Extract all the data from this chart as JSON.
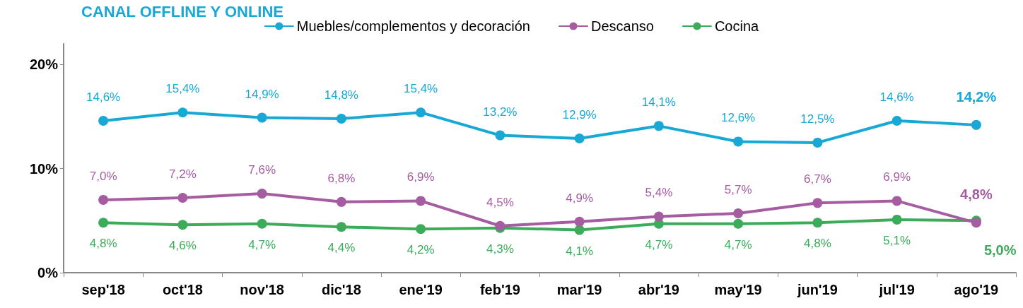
{
  "chart_data": {
    "type": "line",
    "title": "CANAL OFFLINE Y ONLINE",
    "categories": [
      "sep'18",
      "oct'18",
      "nov'18",
      "dic'18",
      "ene'19",
      "feb'19",
      "mar'19",
      "abr'19",
      "may'19",
      "jun'19",
      "jul'19",
      "ago'19"
    ],
    "series": [
      {
        "name": "Muebles/complementos y decoración",
        "color": "#17a8d6",
        "values": [
          14.6,
          15.4,
          14.9,
          14.8,
          15.4,
          13.2,
          12.9,
          14.1,
          12.6,
          12.5,
          14.6,
          14.2
        ],
        "value_labels": [
          "14,6%",
          "15,4%",
          "14,9%",
          "14,8%",
          "15,4%",
          "13,2%",
          "12,9%",
          "14,1%",
          "12,6%",
          "12,5%",
          "14,6%",
          "14,2%"
        ]
      },
      {
        "name": "Descanso",
        "color": "#a55ca1",
        "values": [
          7.0,
          7.2,
          7.6,
          6.8,
          6.9,
          4.5,
          4.9,
          5.4,
          5.7,
          6.7,
          6.9,
          4.8
        ],
        "value_labels": [
          "7,0%",
          "7,2%",
          "7,6%",
          "6,8%",
          "6,9%",
          "4,5%",
          "4,9%",
          "5,4%",
          "5,7%",
          "6,7%",
          "6,9%",
          "4,8%"
        ]
      },
      {
        "name": "Cocina",
        "color": "#3cab5a",
        "values": [
          4.8,
          4.6,
          4.7,
          4.4,
          4.2,
          4.3,
          4.1,
          4.7,
          4.7,
          4.8,
          5.1,
          5.0
        ],
        "value_labels": [
          "4,8%",
          "4,6%",
          "4,7%",
          "4,4%",
          "4,2%",
          "4,3%",
          "4,1%",
          "4,7%",
          "4,7%",
          "4,8%",
          "5,1%",
          "5,0%"
        ]
      }
    ],
    "ylim": [
      0,
      22
    ],
    "yticks": [
      {
        "value": 0,
        "label": "0%"
      },
      {
        "value": 10,
        "label": "10%"
      },
      {
        "value": 20,
        "label": "20%"
      }
    ],
    "grid": false,
    "legend": "top",
    "marker": "circle",
    "line_style": "solid"
  }
}
